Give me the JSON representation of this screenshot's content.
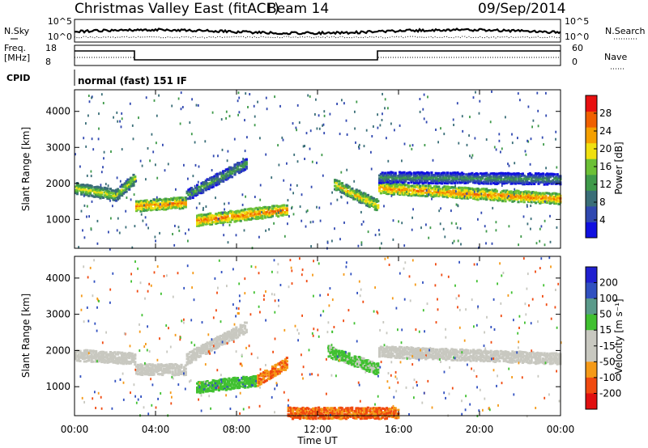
{
  "header": {
    "station": "Christmas Valley East (fitACF)",
    "beam": "Beam 14",
    "date": "09/Sep/2014"
  },
  "small_panels": {
    "nsky_label": "N.Sky",
    "nsky_ticks": [
      "10^5",
      "10^0"
    ],
    "nsearch_label": "N.Search",
    "nsearch_ticks": [
      "10^5",
      "10^0"
    ],
    "freq_label": "Freq.",
    "freq_unit": "[MHz]",
    "freq_ticks": [
      "18",
      "8"
    ],
    "nave_label": "Nave",
    "nave_ticks": [
      "60",
      "0"
    ],
    "cpid_label": "CPID",
    "cpid_text": "normal (fast) 151 IF"
  },
  "colors": {
    "power_scale": [
      "#1010e0",
      "#3048b0",
      "#3a6e78",
      "#3f9a4a",
      "#6cc036",
      "#f0e010",
      "#f5a000",
      "#f06000",
      "#e81010"
    ],
    "velocity_scale": [
      "#e01010",
      "#f04a10",
      "#f59a18",
      "#c8c8c0",
      "#c8c8c0",
      "#40c030",
      "#5a9a8a",
      "#3050c0",
      "#2020d0"
    ]
  },
  "chart_data": [
    {
      "type": "heatmap",
      "name": "Power",
      "ylabel": "Slant Range [km]",
      "ylim": [
        200,
        4600
      ],
      "yticks": [
        1000,
        2000,
        3000,
        4000
      ],
      "xlim_hours": [
        0,
        24
      ],
      "colorbar": {
        "label": "Power [dB]",
        "range": [
          0,
          32
        ],
        "ticks": [
          4,
          8,
          12,
          16,
          20,
          24,
          28
        ]
      },
      "echo_bands": [
        {
          "t0": 0.0,
          "t1": 2.0,
          "r0": 1900,
          "r1": 1700,
          "power": 20
        },
        {
          "t0": 2.0,
          "t1": 3.0,
          "r0": 1700,
          "r1": 2200,
          "power": 18
        },
        {
          "t0": 3.0,
          "t1": 5.5,
          "r0": 1400,
          "r1": 1500,
          "power": 26
        },
        {
          "t0": 5.5,
          "t1": 8.5,
          "r0": 1700,
          "r1": 2600,
          "power": 14
        },
        {
          "t0": 6.0,
          "t1": 10.5,
          "r0": 1000,
          "r1": 1300,
          "power": 27
        },
        {
          "t0": 12.8,
          "t1": 15.0,
          "r0": 2000,
          "r1": 1400,
          "power": 22
        },
        {
          "t0": 15.0,
          "t1": 24.0,
          "r0": 1900,
          "r1": 1600,
          "power": 26
        },
        {
          "t0": 15.0,
          "t1": 24.0,
          "r0": 2200,
          "r1": 2150,
          "power": 12
        }
      ]
    },
    {
      "type": "heatmap",
      "name": "Velocity",
      "ylabel": "Slant Range [km]",
      "xlabel": "Time UT",
      "ylim": [
        200,
        4600
      ],
      "yticks": [
        1000,
        2000,
        3000,
        4000
      ],
      "xlim_hours": [
        0,
        24
      ],
      "xticks": [
        "00:00",
        "04:00",
        "08:00",
        "12:00",
        "16:00",
        "20:00",
        "00:00"
      ],
      "colorbar": {
        "label": "Velocity [m s⁻¹]",
        "ticks": [
          200,
          100,
          50,
          15,
          -15,
          -50,
          -100,
          -200
        ]
      },
      "echo_bands": [
        {
          "t0": 0.0,
          "t1": 3.0,
          "r0": 1900,
          "r1": 1800,
          "velocity": 0
        },
        {
          "t0": 3.0,
          "t1": 5.5,
          "r0": 1500,
          "r1": 1500,
          "velocity": 0
        },
        {
          "t0": 5.5,
          "t1": 8.5,
          "r0": 1800,
          "r1": 2700,
          "velocity": 0
        },
        {
          "t0": 6.0,
          "t1": 9.0,
          "r0": 1000,
          "r1": 1200,
          "velocity": 60
        },
        {
          "t0": 9.0,
          "t1": 10.5,
          "r0": 1200,
          "r1": 1700,
          "velocity": -70
        },
        {
          "t0": 12.5,
          "t1": 15.0,
          "r0": 2000,
          "r1": 1500,
          "velocity": 40
        },
        {
          "t0": 10.5,
          "t1": 16.0,
          "r0": 300,
          "r1": 300,
          "velocity": -80
        },
        {
          "t0": 15.0,
          "t1": 24.0,
          "r0": 2000,
          "r1": 1800,
          "velocity": 0
        }
      ]
    }
  ]
}
